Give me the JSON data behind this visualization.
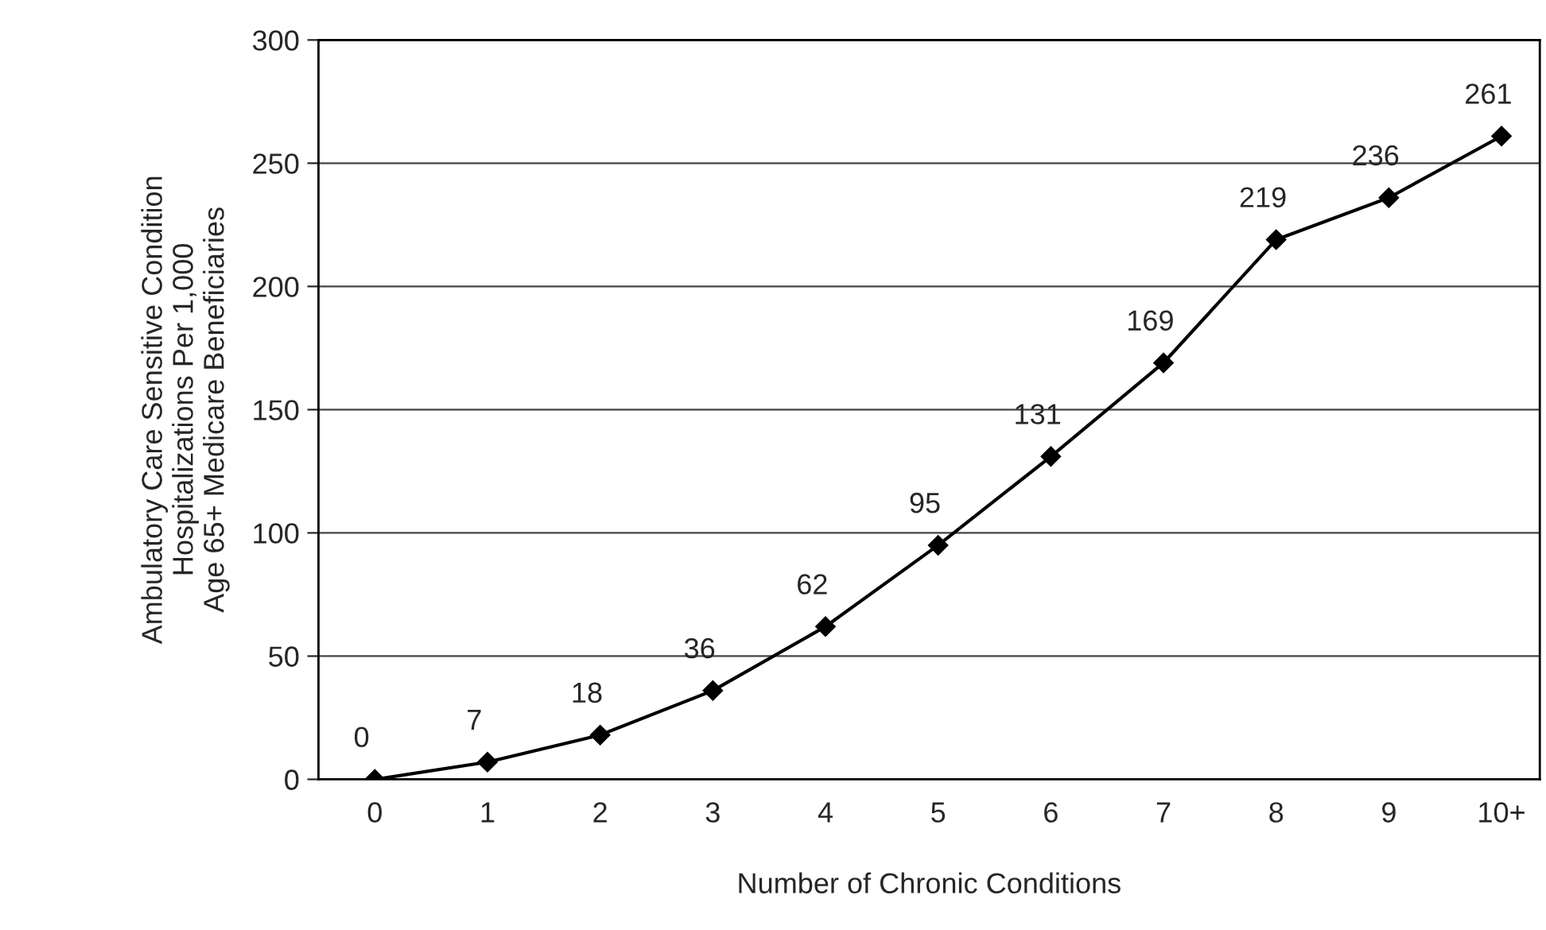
{
  "chart_data": {
    "type": "line",
    "xlabel": "Number of Chronic Conditions",
    "ylabel": "Ambulatory Care Sensitive Condition\nHospitalizations Per 1,000\nAge 65+ Medicare Beneficiaries",
    "categories": [
      "0",
      "1",
      "2",
      "3",
      "4",
      "5",
      "6",
      "7",
      "8",
      "9",
      "10+"
    ],
    "values": [
      0,
      7,
      18,
      36,
      62,
      95,
      131,
      169,
      219,
      236,
      261
    ],
    "color": "#000000",
    "ylim": [
      0,
      300
    ],
    "yticks": [
      0,
      50,
      100,
      150,
      200,
      250,
      300
    ],
    "grid": "y",
    "marker": "diamond",
    "line_style": "solid",
    "data_labels": true
  }
}
